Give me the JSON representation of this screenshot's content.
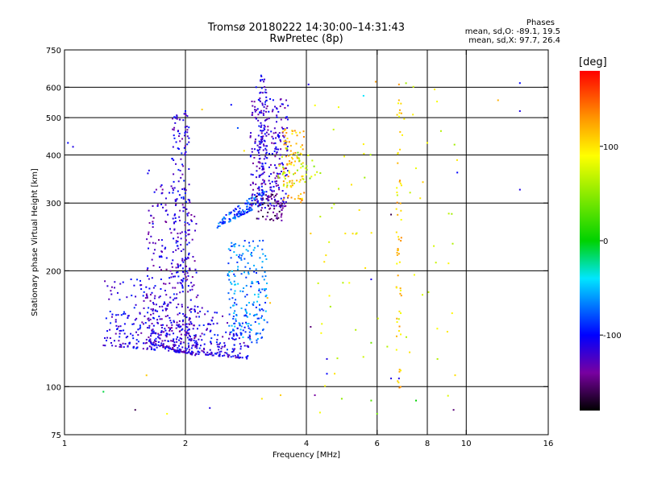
{
  "header": {
    "title": "Tromsø 20180222 14:30:00–14:31:43",
    "subtitle": "RwPretec (8p)"
  },
  "phases": {
    "title": "Phases",
    "lines": [
      "mean, sd,O: -89.1, 19.5",
      "mean, sd,X:  97.7, 26.4"
    ]
  },
  "colorbar": {
    "unit": "[deg]",
    "ticks": [
      "100",
      "0",
      "-100"
    ],
    "tick_values": [
      100,
      0,
      -100
    ],
    "range": [
      -180,
      180
    ]
  },
  "chart_data": {
    "type": "scatter",
    "xlabel": "Frequency [MHz]",
    "ylabel": "Stationary phase Virtual Height [km]",
    "xscale": "log",
    "yscale": "log",
    "xlim": [
      1,
      16
    ],
    "ylim": [
      75,
      750
    ],
    "xticks": [
      1,
      2,
      4,
      6,
      8,
      10,
      16
    ],
    "yticks": [
      75,
      100,
      200,
      300,
      400,
      500,
      600,
      750
    ],
    "x_gridlines": [
      2,
      4,
      6,
      8,
      10
    ],
    "y_gridlines": [
      100,
      200,
      300,
      400,
      500,
      600
    ],
    "color_variable": "phase [deg]",
    "clusters": [
      {
        "x": [
          1.25,
          2.9
        ],
        "y_start": [
          128,
          118
        ],
        "y_end": [
          205,
          148
        ],
        "phase": -110,
        "count": 420
      },
      {
        "x": [
          1.6,
          2.15
        ],
        "y_start": [
          130,
          120
        ],
        "y_end": [
          380,
          300
        ],
        "phase": -120,
        "count": 360
      },
      {
        "x": [
          1.85,
          2.05
        ],
        "y": [
          180,
          520
        ],
        "phase": -115,
        "count": 140
      },
      {
        "x": [
          2.4,
          3.15
        ],
        "y_start": [
          258,
          300
        ],
        "y_end": [
          270,
          330
        ],
        "phase": -80,
        "count": 120
      },
      {
        "x": [
          2.55,
          3.2
        ],
        "y": [
          130,
          240
        ],
        "phase": -70,
        "count": 200
      },
      {
        "x": [
          2.9,
          3.6
        ],
        "y": [
          290,
          560
        ],
        "phase": -120,
        "count": 260
      },
      {
        "x": [
          3.05,
          3.2
        ],
        "y": [
          350,
          650
        ],
        "phase": -110,
        "count": 70
      },
      {
        "x": [
          3.0,
          3.5
        ],
        "y": [
          270,
          320
        ],
        "phase": -150,
        "count": 60
      },
      {
        "x": [
          3.5,
          3.95
        ],
        "y": [
          300,
          470
        ],
        "phase": 115,
        "count": 90
      },
      {
        "x": [
          3.4,
          4.3
        ],
        "y": [
          330,
          420
        ],
        "phase": 60,
        "count": 40
      },
      {
        "x": [
          6.7,
          6.9
        ],
        "y": [
          95,
          620
        ],
        "phase": 110,
        "count": 60
      },
      {
        "x": [
          4.2,
          9.5
        ],
        "y": [
          85,
          620
        ],
        "phase": 80,
        "count": 70
      }
    ],
    "points": [
      {
        "x": 1.05,
        "y": 420,
        "phase": -110
      },
      {
        "x": 1.02,
        "y": 430,
        "phase": -100
      },
      {
        "x": 2.0,
        "y": 520,
        "phase": -100
      },
      {
        "x": 2.0,
        "y": 460,
        "phase": -110
      },
      {
        "x": 4.05,
        "y": 610,
        "phase": -110
      },
      {
        "x": 5.95,
        "y": 620,
        "phase": 130
      },
      {
        "x": 6.8,
        "y": 610,
        "phase": 130
      },
      {
        "x": 6.8,
        "y": 555,
        "phase": 120
      },
      {
        "x": 5.55,
        "y": 570,
        "phase": -40
      },
      {
        "x": 12.0,
        "y": 555,
        "phase": 120
      },
      {
        "x": 13.6,
        "y": 615,
        "phase": -100
      },
      {
        "x": 13.6,
        "y": 520,
        "phase": -110
      },
      {
        "x": 13.6,
        "y": 325,
        "phase": -110
      },
      {
        "x": 9.5,
        "y": 360,
        "phase": -100
      },
      {
        "x": 8.0,
        "y": 430,
        "phase": 90
      },
      {
        "x": 7.8,
        "y": 340,
        "phase": 110
      },
      {
        "x": 6.5,
        "y": 280,
        "phase": -160
      },
      {
        "x": 6.5,
        "y": 105,
        "phase": -110
      },
      {
        "x": 6.8,
        "y": 105,
        "phase": -110
      },
      {
        "x": 7.5,
        "y": 92,
        "phase": 0
      },
      {
        "x": 9.3,
        "y": 87,
        "phase": -150
      },
      {
        "x": 4.1,
        "y": 143,
        "phase": -150
      },
      {
        "x": 4.5,
        "y": 118,
        "phase": -110
      },
      {
        "x": 4.5,
        "y": 108,
        "phase": -100
      },
      {
        "x": 4.2,
        "y": 95,
        "phase": -140
      },
      {
        "x": 4.9,
        "y": 93,
        "phase": 50
      },
      {
        "x": 5.8,
        "y": 190,
        "phase": -110
      },
      {
        "x": 5.8,
        "y": 130,
        "phase": 40
      },
      {
        "x": 5.8,
        "y": 92,
        "phase": 30
      },
      {
        "x": 6.0,
        "y": 85,
        "phase": 40
      },
      {
        "x": 5.0,
        "y": 250,
        "phase": 100
      },
      {
        "x": 4.1,
        "y": 250,
        "phase": 110
      },
      {
        "x": 3.2,
        "y": 170,
        "phase": 115
      },
      {
        "x": 3.25,
        "y": 165,
        "phase": 115
      },
      {
        "x": 1.6,
        "y": 107,
        "phase": 110
      },
      {
        "x": 1.8,
        "y": 85,
        "phase": 90
      },
      {
        "x": 1.25,
        "y": 97,
        "phase": -10
      },
      {
        "x": 1.5,
        "y": 87,
        "phase": -160
      },
      {
        "x": 2.3,
        "y": 88,
        "phase": -110
      },
      {
        "x": 2.2,
        "y": 525,
        "phase": 110
      },
      {
        "x": 2.6,
        "y": 540,
        "phase": -100
      },
      {
        "x": 2.7,
        "y": 470,
        "phase": -80
      },
      {
        "x": 3.0,
        "y": 600,
        "phase": -100
      },
      {
        "x": 2.8,
        "y": 410,
        "phase": 100
      },
      {
        "x": 3.1,
        "y": 93,
        "phase": 100
      },
      {
        "x": 3.45,
        "y": 95,
        "phase": 110
      }
    ]
  }
}
